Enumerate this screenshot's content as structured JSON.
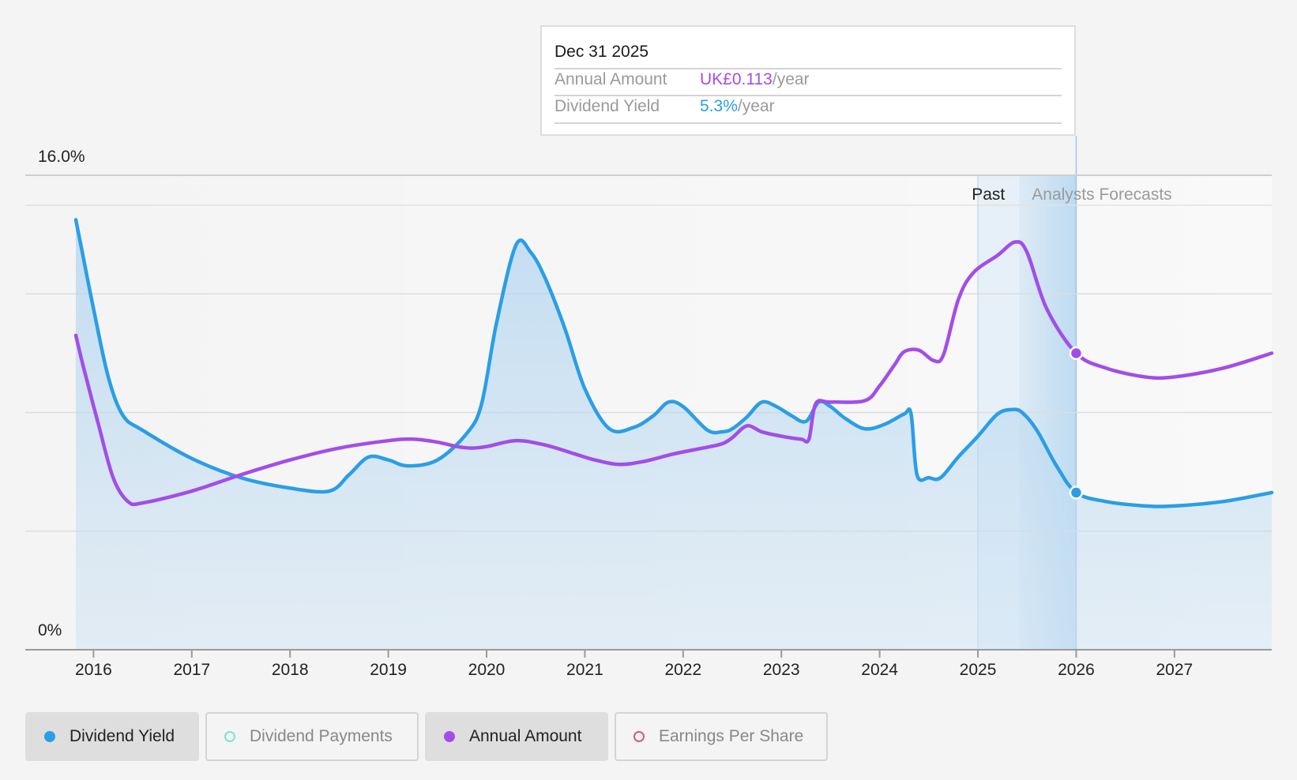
{
  "chart_data": {
    "type": "area",
    "y_axis": {
      "top_label": "16.0%",
      "bottom_label": "0%",
      "ylim": [
        0,
        16
      ]
    },
    "x_axis": {
      "ticks": [
        "2016",
        "2017",
        "2018",
        "2019",
        "2020",
        "2021",
        "2022",
        "2023",
        "2024",
        "2025",
        "2026",
        "2027"
      ],
      "xlim": [
        2015.82,
        2027.99
      ]
    },
    "regions": {
      "past_label": "Past",
      "forecast_label": "Analysts Forecasts",
      "past_start": 2025.0,
      "forecast_start": 2025.42,
      "forecast_end": 2026.0
    },
    "series": [
      {
        "name": "Dividend Yield",
        "color": "#2a9ee6",
        "points": [
          [
            2015.82,
            14.5
          ],
          [
            2015.88,
            13.5
          ],
          [
            2016.0,
            11.5
          ],
          [
            2016.15,
            9.2
          ],
          [
            2016.3,
            7.9
          ],
          [
            2016.5,
            7.4
          ],
          [
            2017.0,
            6.45
          ],
          [
            2017.5,
            5.8
          ],
          [
            2018.0,
            5.45
          ],
          [
            2018.4,
            5.35
          ],
          [
            2018.6,
            5.9
          ],
          [
            2018.8,
            6.5
          ],
          [
            2019.0,
            6.4
          ],
          [
            2019.2,
            6.2
          ],
          [
            2019.5,
            6.4
          ],
          [
            2019.8,
            7.3
          ],
          [
            2019.95,
            8.3
          ],
          [
            2020.1,
            11.0
          ],
          [
            2020.3,
            13.65
          ],
          [
            2020.45,
            13.4
          ],
          [
            2020.6,
            12.5
          ],
          [
            2020.8,
            10.8
          ],
          [
            2021.0,
            8.8
          ],
          [
            2021.25,
            7.45
          ],
          [
            2021.5,
            7.5
          ],
          [
            2021.7,
            7.9
          ],
          [
            2021.85,
            8.35
          ],
          [
            2022.0,
            8.2
          ],
          [
            2022.25,
            7.4
          ],
          [
            2022.4,
            7.35
          ],
          [
            2022.5,
            7.45
          ],
          [
            2022.65,
            7.85
          ],
          [
            2022.8,
            8.35
          ],
          [
            2022.95,
            8.2
          ],
          [
            2023.1,
            7.9
          ],
          [
            2023.25,
            7.7
          ],
          [
            2023.38,
            8.35
          ],
          [
            2023.5,
            8.2
          ],
          [
            2023.65,
            7.8
          ],
          [
            2023.85,
            7.45
          ],
          [
            2024.05,
            7.6
          ],
          [
            2024.25,
            7.95
          ],
          [
            2024.32,
            7.95
          ],
          [
            2024.38,
            5.9
          ],
          [
            2024.5,
            5.8
          ],
          [
            2024.62,
            5.8
          ],
          [
            2024.8,
            6.5
          ],
          [
            2025.0,
            7.2
          ],
          [
            2025.2,
            7.95
          ],
          [
            2025.35,
            8.1
          ],
          [
            2025.45,
            8.0
          ],
          [
            2025.6,
            7.4
          ],
          [
            2025.8,
            6.2
          ],
          [
            2026.0,
            5.3
          ],
          [
            2026.3,
            5.0
          ],
          [
            2026.7,
            4.85
          ],
          [
            2027.0,
            4.85
          ],
          [
            2027.5,
            5.0
          ],
          [
            2027.99,
            5.3
          ]
        ]
      },
      {
        "name": "Annual Amount",
        "color": "#a34de8",
        "points": [
          [
            2015.82,
            10.6
          ],
          [
            2015.9,
            9.5
          ],
          [
            2016.05,
            7.6
          ],
          [
            2016.2,
            5.8
          ],
          [
            2016.35,
            5.0
          ],
          [
            2016.5,
            4.95
          ],
          [
            2017.0,
            5.35
          ],
          [
            2017.5,
            5.9
          ],
          [
            2018.0,
            6.4
          ],
          [
            2018.5,
            6.8
          ],
          [
            2019.0,
            7.05
          ],
          [
            2019.25,
            7.1
          ],
          [
            2019.5,
            7.0
          ],
          [
            2019.7,
            6.85
          ],
          [
            2019.85,
            6.8
          ],
          [
            2020.0,
            6.85
          ],
          [
            2020.3,
            7.05
          ],
          [
            2020.6,
            6.9
          ],
          [
            2020.9,
            6.6
          ],
          [
            2021.1,
            6.4
          ],
          [
            2021.35,
            6.25
          ],
          [
            2021.6,
            6.35
          ],
          [
            2021.9,
            6.6
          ],
          [
            2022.2,
            6.8
          ],
          [
            2022.4,
            6.95
          ],
          [
            2022.5,
            7.15
          ],
          [
            2022.65,
            7.55
          ],
          [
            2022.8,
            7.35
          ],
          [
            2023.0,
            7.2
          ],
          [
            2023.2,
            7.1
          ],
          [
            2023.28,
            7.1
          ],
          [
            2023.35,
            8.3
          ],
          [
            2023.5,
            8.35
          ],
          [
            2023.85,
            8.4
          ],
          [
            2024.0,
            8.9
          ],
          [
            2024.15,
            9.6
          ],
          [
            2024.25,
            10.05
          ],
          [
            2024.4,
            10.1
          ],
          [
            2024.55,
            9.75
          ],
          [
            2024.65,
            9.95
          ],
          [
            2024.8,
            11.8
          ],
          [
            2024.95,
            12.7
          ],
          [
            2025.2,
            13.3
          ],
          [
            2025.38,
            13.75
          ],
          [
            2025.5,
            13.4
          ],
          [
            2025.7,
            11.5
          ],
          [
            2026.0,
            10.0
          ],
          [
            2026.3,
            9.5
          ],
          [
            2026.7,
            9.2
          ],
          [
            2027.0,
            9.2
          ],
          [
            2027.5,
            9.5
          ],
          [
            2027.99,
            10.0
          ]
        ]
      }
    ],
    "highlight": {
      "x": 2026.0,
      "yield_value": 5.3,
      "amount_value": 10.0
    }
  },
  "tooltip": {
    "date": "Dec 31 2025",
    "annual_amount_label": "Annual Amount",
    "annual_amount_value": "UK£0.113",
    "annual_amount_unit": "/year",
    "yield_label": "Dividend Yield",
    "yield_value": "5.3%",
    "yield_unit": "/year"
  },
  "legend": [
    {
      "label": "Dividend Yield",
      "active": true,
      "color": "#2a9ee6"
    },
    {
      "label": "Dividend Payments",
      "active": false,
      "color": "#7fe0d4"
    },
    {
      "label": "Annual Amount",
      "active": true,
      "color": "#a34de8"
    },
    {
      "label": "Earnings Per Share",
      "active": false,
      "color": "#d4568c"
    }
  ]
}
